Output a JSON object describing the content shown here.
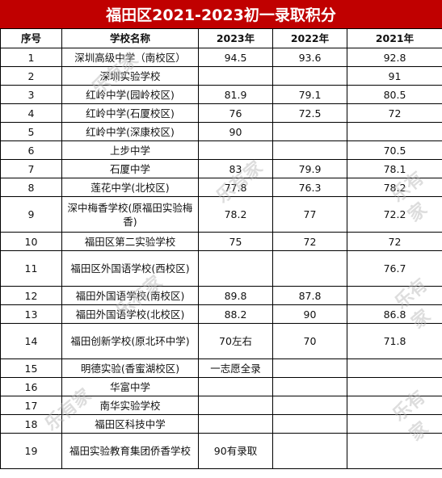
{
  "title": "福田区2021-2023初一录取积分",
  "headers": [
    "序号",
    "学校名称",
    "2023年",
    "2022年",
    "2021年"
  ],
  "rows": [
    {
      "no": "1",
      "school": "深圳高级中学（南校区）",
      "y2023": "94.5",
      "y2022": "93.6",
      "y2021": "92.8"
    },
    {
      "no": "2",
      "school": "深圳实验学校",
      "y2023": "",
      "y2022": "",
      "y2021": "91"
    },
    {
      "no": "3",
      "school": "红岭中学(园岭校区)",
      "y2023": "81.9",
      "y2022": "79.1",
      "y2021": "80.5"
    },
    {
      "no": "4",
      "school": "红岭中学(石厦校区)",
      "y2023": "76",
      "y2022": "72.5",
      "y2021": "72"
    },
    {
      "no": "5",
      "school": "红岭中学(深康校区)",
      "y2023": "90",
      "y2022": "",
      "y2021": ""
    },
    {
      "no": "6",
      "school": "上步中学",
      "y2023": "",
      "y2022": "",
      "y2021": "70.5"
    },
    {
      "no": "7",
      "school": "石厦中学",
      "y2023": "83",
      "y2022": "79.9",
      "y2021": "78.1"
    },
    {
      "no": "8",
      "school": "莲花中学(北校区)",
      "y2023": "77.8",
      "y2022": "76.3",
      "y2021": "78.2"
    },
    {
      "no": "9",
      "school": "深中梅香学校(原福田实验梅香)",
      "y2023": "78.2",
      "y2022": "77",
      "y2021": "72.2"
    },
    {
      "no": "10",
      "school": "福田区第二实验学校",
      "y2023": "75",
      "y2022": "72",
      "y2021": "72"
    },
    {
      "no": "11",
      "school": "福田区外国语学校(西校区)",
      "y2023": "",
      "y2022": "",
      "y2021": "76.7"
    },
    {
      "no": "12",
      "school": "福田外国语学校(南校区)",
      "y2023": "89.8",
      "y2022": "87.8",
      "y2021": ""
    },
    {
      "no": "13",
      "school": "福田外国语学校(北校区)",
      "y2023": "88.2",
      "y2022": "90",
      "y2021": "86.8"
    },
    {
      "no": "14",
      "school": "福田创新学校(原北环中学)",
      "y2023": "70左右",
      "y2022": "70",
      "y2021": "71.8"
    },
    {
      "no": "15",
      "school": "明德实验(香蜜湖校区)",
      "y2023": "一志愿全录",
      "y2022": "",
      "y2021": ""
    },
    {
      "no": "16",
      "school": "华富中学",
      "y2023": "",
      "y2022": "",
      "y2021": ""
    },
    {
      "no": "17",
      "school": "南华实验学校",
      "y2023": "",
      "y2022": "",
      "y2021": ""
    },
    {
      "no": "18",
      "school": "福田区科技中学",
      "y2023": "",
      "y2022": "",
      "y2021": ""
    },
    {
      "no": "19",
      "school": "福田实验教育集团侨香学校",
      "y2023": "90有录取",
      "y2022": "",
      "y2021": ""
    }
  ],
  "watermark": "乐有家",
  "colors": {
    "title_bg": "#c00000",
    "title_text": "#ffffff"
  }
}
